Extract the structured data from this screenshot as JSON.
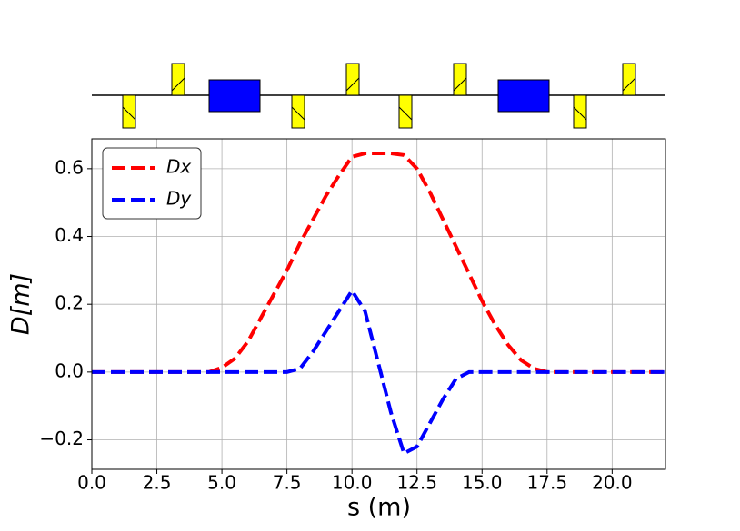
{
  "chart_data": {
    "type": "line",
    "xlabel": "s (m)",
    "ylabel": "D[m]",
    "x": [
      0,
      1,
      2,
      3,
      4,
      4.5,
      5,
      5.5,
      6,
      6.5,
      7,
      7.5,
      8,
      8.5,
      9,
      9.5,
      10,
      10.5,
      11,
      11.5,
      12,
      12.5,
      13,
      13.5,
      14,
      14.5,
      15,
      15.5,
      16,
      16.5,
      17,
      17.5,
      18,
      19,
      20,
      21,
      22.05
    ],
    "series": [
      {
        "name": "Dx",
        "color": "#ff0000",
        "values": [
          0,
          0,
          0,
          0,
          0,
          0,
          0.013,
          0.04,
          0.09,
          0.16,
          0.23,
          0.3,
          0.38,
          0.45,
          0.52,
          0.58,
          0.635,
          0.645,
          0.645,
          0.645,
          0.64,
          0.6,
          0.53,
          0.45,
          0.37,
          0.29,
          0.21,
          0.14,
          0.08,
          0.035,
          0.01,
          0,
          0,
          0,
          0,
          0,
          0
        ]
      },
      {
        "name": "Dy",
        "color": "#0000ff",
        "values": [
          0,
          0,
          0,
          0,
          0,
          0,
          0,
          0,
          0,
          0,
          0,
          0,
          0.01,
          0.06,
          0.12,
          0.18,
          0.24,
          0.18,
          0.03,
          -0.12,
          -0.24,
          -0.22,
          -0.15,
          -0.08,
          -0.02,
          0,
          0,
          0,
          0,
          0,
          0,
          0,
          0,
          0,
          0,
          0,
          0
        ]
      }
    ],
    "xlim": [
      0,
      22.05
    ],
    "ylim": [
      -0.287,
      0.688
    ],
    "xticks": [
      {
        "value": 0,
        "label": "0.0"
      },
      2.5,
      {
        "value": 5,
        "label": "5.0"
      },
      7.5,
      {
        "value": 10,
        "label": "10.0"
      },
      12.5,
      {
        "value": 15,
        "label": "15.0"
      },
      17.5,
      {
        "value": 20,
        "label": "20.0"
      }
    ],
    "yticks": [
      {
        "value": -0.2,
        "label": "−0.2"
      },
      {
        "value": 0,
        "label": "0.0"
      },
      0.2,
      0.4,
      0.6
    ],
    "grid": true,
    "legend": "upper left"
  }
}
